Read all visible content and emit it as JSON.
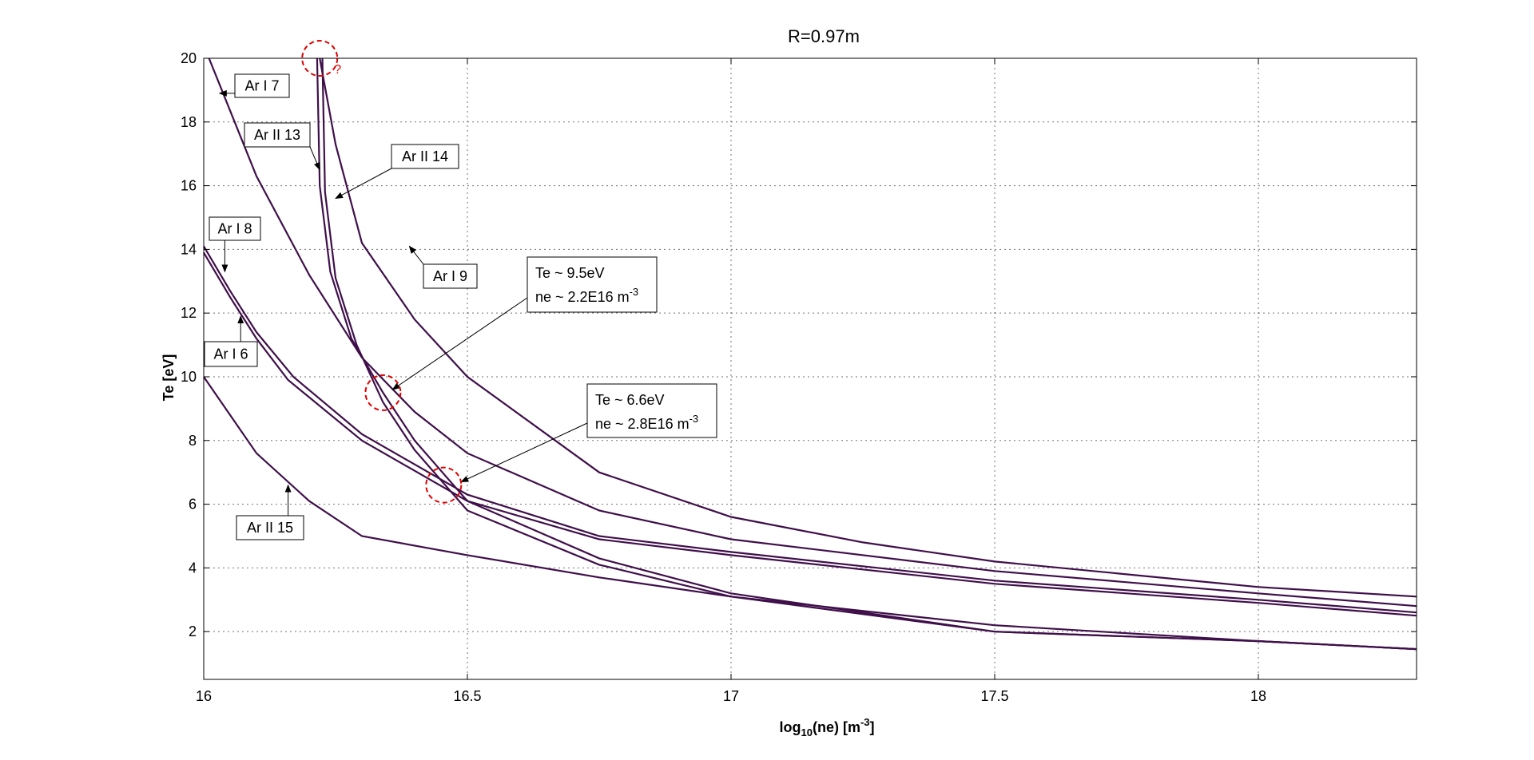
{
  "chart_data": {
    "type": "line",
    "title": "R=0.97m",
    "xlabel": "log",
    "xlabel_sub": "10",
    "xlabel_rest": "(ne) [m",
    "xlabel_sup": "-3",
    "xlabel_end": "]",
    "ylabel": "Te [eV]",
    "xlim": [
      16,
      18.3
    ],
    "ylim": [
      0.5,
      20
    ],
    "x_ticks": [
      "16",
      "16.5",
      "17",
      "17.5",
      "18"
    ],
    "x_tick_values": [
      16,
      16.5,
      17,
      17.5,
      18
    ],
    "y_ticks": [
      "2",
      "4",
      "6",
      "8",
      "10",
      "12",
      "14",
      "16",
      "18",
      "20"
    ],
    "y_tick_values": [
      2,
      4,
      6,
      8,
      10,
      12,
      14,
      16,
      18,
      20
    ],
    "grid": true,
    "line_color": "#3f0f4a",
    "series": [
      {
        "name": "Ar I 7",
        "x": [
          16.01,
          16.1,
          16.2,
          16.3,
          16.4,
          16.5,
          16.75,
          17.0,
          17.5,
          18.0,
          18.3
        ],
        "y": [
          20,
          16.3,
          13.2,
          10.6,
          8.9,
          7.6,
          5.8,
          4.9,
          3.9,
          3.2,
          2.8
        ]
      },
      {
        "name": "Ar I 8",
        "x": [
          16.0,
          16.05,
          16.1,
          16.17,
          16.3,
          16.5,
          16.75,
          17.0,
          17.5,
          18.0,
          18.3
        ],
        "y": [
          14.1,
          12.7,
          11.4,
          10.0,
          8.2,
          6.3,
          5.0,
          4.5,
          3.6,
          3.0,
          2.6
        ]
      },
      {
        "name": "Ar I 6",
        "x": [
          16.0,
          16.05,
          16.1,
          16.16,
          16.3,
          16.5,
          16.75,
          17.0,
          17.5,
          18.0,
          18.3
        ],
        "y": [
          13.9,
          12.5,
          11.2,
          9.9,
          8.0,
          6.1,
          4.9,
          4.4,
          3.5,
          2.9,
          2.5
        ]
      },
      {
        "name": "Ar I 9",
        "x": [
          16.22,
          16.25,
          16.3,
          16.4,
          16.5,
          16.75,
          17.0,
          17.25,
          17.5,
          18.0,
          18.3
        ],
        "y": [
          20,
          17.3,
          14.2,
          11.8,
          10.0,
          7.0,
          5.6,
          4.8,
          4.2,
          3.4,
          3.1
        ]
      },
      {
        "name": "Ar II 13",
        "x": [
          16.215,
          16.22,
          16.24,
          16.28,
          16.34,
          16.4,
          16.5,
          16.75,
          17.0,
          17.5,
          18.0,
          18.3
        ],
        "y": [
          20,
          16.0,
          13.3,
          11.2,
          9.5,
          8.0,
          6.1,
          4.3,
          3.2,
          2.0,
          1.7,
          1.45
        ]
      },
      {
        "name": "Ar II 14",
        "x": [
          16.225,
          16.23,
          16.25,
          16.29,
          16.34,
          16.4,
          16.5,
          16.75,
          17.0,
          17.5,
          18.0,
          18.3
        ],
        "y": [
          20,
          15.8,
          13.1,
          11.0,
          9.2,
          7.7,
          5.8,
          4.1,
          3.1,
          2.0,
          1.7,
          1.45
        ]
      },
      {
        "name": "Ar II 15",
        "x": [
          16.0,
          16.1,
          16.2,
          16.3,
          16.5,
          16.75,
          17.0,
          17.5,
          18.0,
          18.3
        ],
        "y": [
          10.0,
          7.6,
          6.1,
          5.0,
          4.4,
          3.7,
          3.1,
          2.2,
          1.7,
          1.45
        ]
      }
    ],
    "labels": [
      {
        "id": "ar-i-7",
        "text": "Ar I 7",
        "point": [
          16.03,
          18.9
        ]
      },
      {
        "id": "ar-ii-13",
        "text": "Ar II 13",
        "point": [
          16.22,
          16.5
        ]
      },
      {
        "id": "ar-ii-14",
        "text": "Ar II 14",
        "point": [
          16.25,
          15.6
        ]
      },
      {
        "id": "ar-i-8",
        "text": "Ar I 8",
        "point": [
          16.04,
          13.3
        ]
      },
      {
        "id": "ar-i-9",
        "text": "Ar I 9",
        "point": [
          16.39,
          14.1
        ]
      },
      {
        "id": "ar-i-6",
        "text": "Ar I 6",
        "point": [
          16.07,
          11.9
        ]
      },
      {
        "id": "ar-ii-15",
        "text": "Ar II 15",
        "point": [
          16.16,
          6.6
        ]
      }
    ],
    "annotations": [
      {
        "id": "point-1",
        "line1": "Te ~ 9.5eV",
        "line2_a": "ne ~ 2.2E16 m",
        "line2_sup": "-3",
        "point": [
          16.34,
          9.5
        ]
      },
      {
        "id": "point-2",
        "line1": "Te ~ 6.6eV",
        "line2_a": "ne ~ 2.8E16 m",
        "line2_sup": "-3",
        "point": [
          16.47,
          6.6
        ]
      }
    ],
    "highlight_circles": [
      {
        "x": 16.22,
        "y": 20
      },
      {
        "x": 16.34,
        "y": 9.5
      },
      {
        "x": 16.455,
        "y": 6.6
      }
    ],
    "question_mark": "?"
  }
}
